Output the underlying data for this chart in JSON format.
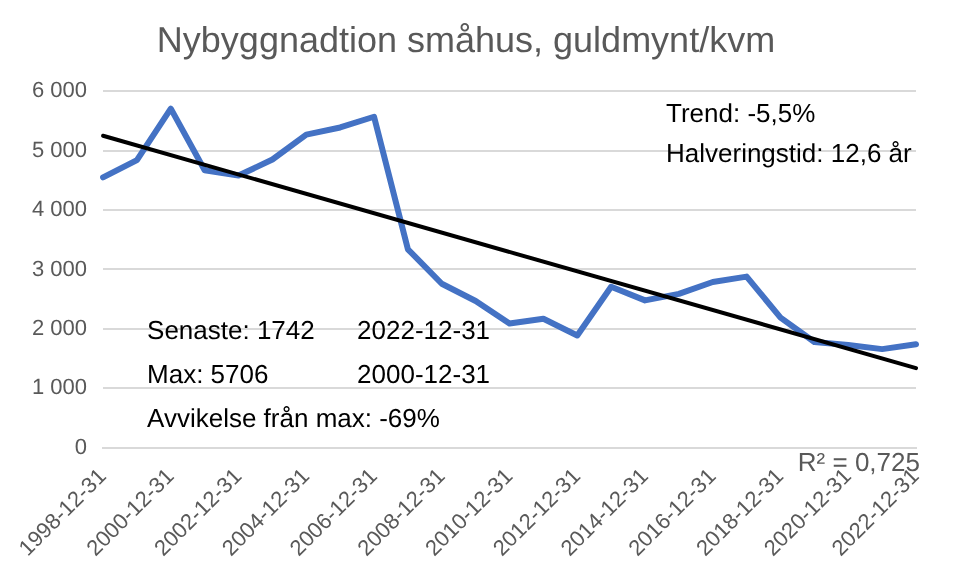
{
  "chart_data": {
    "type": "line",
    "title": "Nybyggnadtion småhus, guldmynt/kvm",
    "categories": [
      "1998-12-31",
      null,
      "2000-12-31",
      null,
      "2002-12-31",
      null,
      "2004-12-31",
      null,
      "2006-12-31",
      null,
      "2008-12-31",
      null,
      "2010-12-31",
      null,
      "2012-12-31",
      null,
      "2014-12-31",
      null,
      "2016-12-31",
      null,
      "2018-12-31",
      null,
      "2020-12-31",
      null,
      "2022-12-31"
    ],
    "series": [
      {
        "color": "#4472c4",
        "values": [
          4550,
          4840,
          5706,
          4670,
          4580,
          4850,
          5270,
          5390,
          5570,
          3340,
          2760,
          2470,
          2090,
          2170,
          1890,
          2710,
          2480,
          2590,
          2790,
          2880,
          2190,
          1780,
          1730,
          1660,
          1742
        ]
      },
      {
        "type": "line",
        "color": "#000000",
        "values": [
          5250,
          null,
          null,
          null,
          null,
          null,
          null,
          null,
          null,
          null,
          null,
          null,
          null,
          null,
          null,
          null,
          null,
          null,
          null,
          null,
          null,
          null,
          null,
          null,
          1340
        ]
      }
    ],
    "ylim": [
      0,
      6000
    ],
    "yticks": [
      {
        "value": 0,
        "label": "0"
      },
      {
        "value": 1000,
        "label": "1 000"
      },
      {
        "value": 2000,
        "label": "2 000"
      },
      {
        "value": 3000,
        "label": "3 000"
      },
      {
        "value": 4000,
        "label": "4 000"
      },
      {
        "value": 5000,
        "label": "5 000"
      },
      {
        "value": 6000,
        "label": "6 000"
      }
    ],
    "grid": "y",
    "legend": false,
    "marker": "none",
    "line_style": "solid",
    "annotations": [
      "Trend: -5,5%",
      "Halveringstid: 12,6 år",
      "Senaste: 1742",
      "2022-12-31",
      "Max: 5706",
      "2000-12-31",
      "Avvikelse från max: -69%",
      "R² = 0,725"
    ]
  }
}
